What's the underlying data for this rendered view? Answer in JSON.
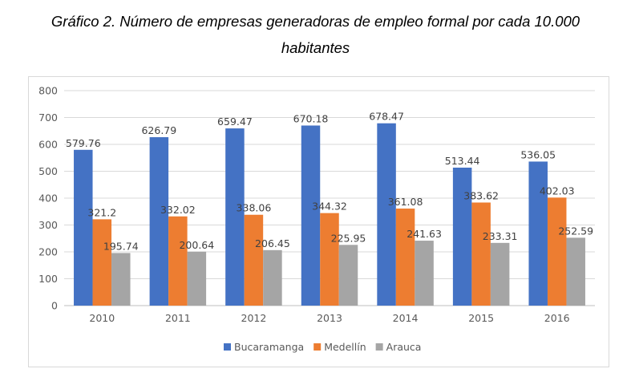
{
  "title_line1": "Gráfico 2. Número de empresas generadoras de empleo formal por cada 10.000",
  "title_line2": "habitantes",
  "chart_data": {
    "type": "bar",
    "title": "Gráfico 2. Número de empresas generadoras de empleo formal por cada 10.000 habitantes",
    "xlabel": "",
    "ylabel": "",
    "categories": [
      "2010",
      "2011",
      "2012",
      "2013",
      "2014",
      "2015",
      "2016"
    ],
    "series": [
      {
        "name": "Bucaramanga",
        "color": "#4472c4",
        "values": [
          579.76,
          626.79,
          659.47,
          670.18,
          678.47,
          513.44,
          536.05
        ]
      },
      {
        "name": "Medellín",
        "color": "#ed7d31",
        "values": [
          321.2,
          332.02,
          338.06,
          344.32,
          361.08,
          383.62,
          402.03
        ]
      },
      {
        "name": "Arauca",
        "color": "#a5a5a5",
        "values": [
          195.74,
          200.64,
          206.45,
          225.95,
          241.63,
          233.31,
          252.59
        ]
      }
    ],
    "ylim": [
      0,
      800
    ],
    "yticks": [
      0,
      100,
      200,
      300,
      400,
      500,
      600,
      700,
      800
    ],
    "grid": true,
    "legend": "bottom",
    "data_labels": true
  }
}
